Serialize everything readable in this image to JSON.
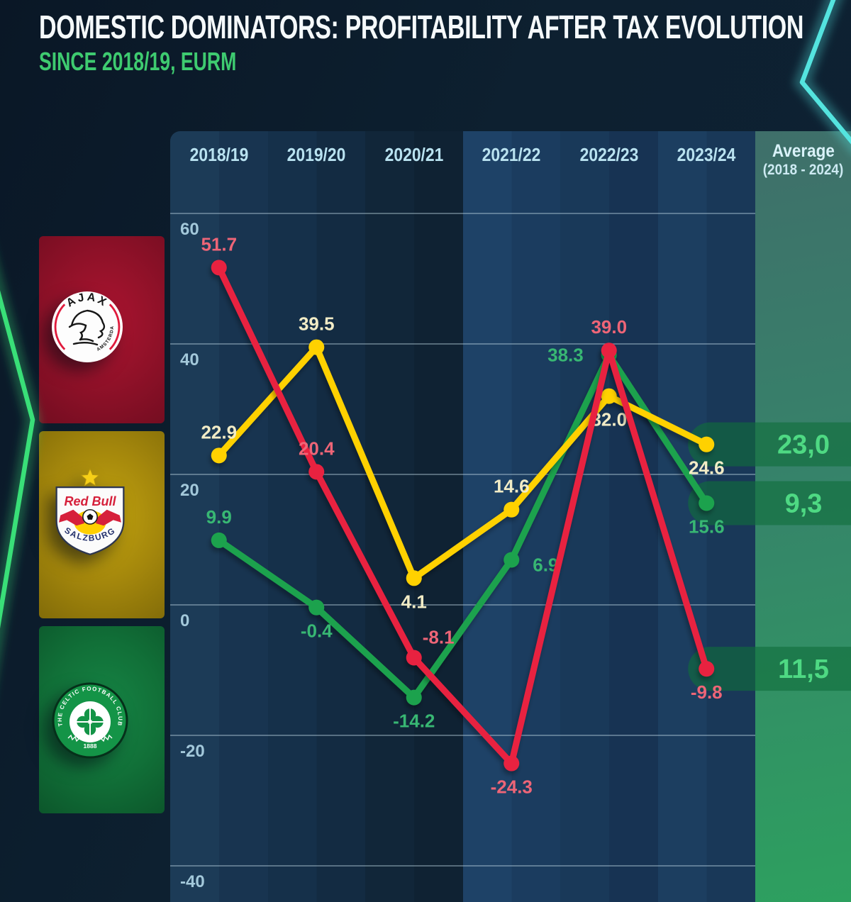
{
  "header": {
    "title": "DOMESTIC DOMINATORS: PROFITABILITY AFTER TAX EVOLUTION",
    "subtitle": "SINCE 2018/19, EURM",
    "accent_color": "#3ecb70"
  },
  "sidebar": {
    "clubs": [
      {
        "name": "AFC Ajax",
        "band_color": "#9c1129",
        "ring_text_top": "AJAX",
        "ring_text_bottom": "AMSTERDAM"
      },
      {
        "name": "FC Red Bull Salzburg",
        "band_color": "#b0900c",
        "crest_text_top": "Red Bull",
        "crest_text_bottom": "SALZBURG"
      },
      {
        "name": "Celtic FC",
        "band_color": "#11703a",
        "ring_text": "THE CELTIC FOOTBALL CLUB",
        "year_text": "1888"
      }
    ]
  },
  "chart_data": {
    "type": "line",
    "title": "DOMESTIC DOMINATORS: PROFITABILITY AFTER TAX EVOLUTION",
    "subtitle": "SINCE 2018/19, EURM",
    "categories": [
      "2018/19",
      "2019/20",
      "2020/21",
      "2021/22",
      "2022/23",
      "2023/24"
    ],
    "average_column": {
      "header_line1": "Average",
      "header_line2": "(2018 - 2024)"
    },
    "yticks": [
      60,
      40,
      20,
      0,
      -20,
      -40
    ],
    "ylim": [
      -48,
      66
    ],
    "grid": true,
    "legend_position": "left sidebar (club crests)",
    "series": [
      {
        "name": "Ajax",
        "color": "#e8223f",
        "label_color": "#ee6577",
        "values": [
          51.7,
          20.4,
          -8.1,
          -24.3,
          39.0,
          -9.8
        ],
        "labels": [
          "51.7",
          "20.4",
          "-8.1",
          "-24.3",
          "39.0",
          "-9.8"
        ],
        "label_positions": [
          "above",
          "above",
          "above-right",
          "below",
          "above",
          "below"
        ],
        "average_value": 11.5,
        "average_label": "11,5"
      },
      {
        "name": "Red Bull Salzburg",
        "color": "#ffd100",
        "label_color": "#f2ecc6",
        "values": [
          22.9,
          39.5,
          4.1,
          14.6,
          32.0,
          24.6
        ],
        "labels": [
          "22.9",
          "39.5",
          "4.1",
          "14.6",
          "32.0",
          "24.6"
        ],
        "label_positions": [
          "above",
          "above",
          "below",
          "above",
          "below",
          "below"
        ],
        "average_value": 23.0,
        "average_label": "23,0"
      },
      {
        "name": "Celtic",
        "color": "#1fa24e",
        "label_color": "#38b773",
        "values": [
          9.9,
          -0.4,
          -14.2,
          6.9,
          38.3,
          15.6
        ],
        "labels": [
          "9.9",
          "-0.4",
          "-14.2",
          "6.9",
          "38.3",
          "15.6"
        ],
        "label_positions": [
          "above",
          "below",
          "below",
          "right",
          "left",
          "below"
        ],
        "average_value": 9.3,
        "average_label": "9,3"
      }
    ],
    "average_value_color": "#4ed983",
    "average_pill_color": "rgba(16,110,60,0.62)"
  }
}
